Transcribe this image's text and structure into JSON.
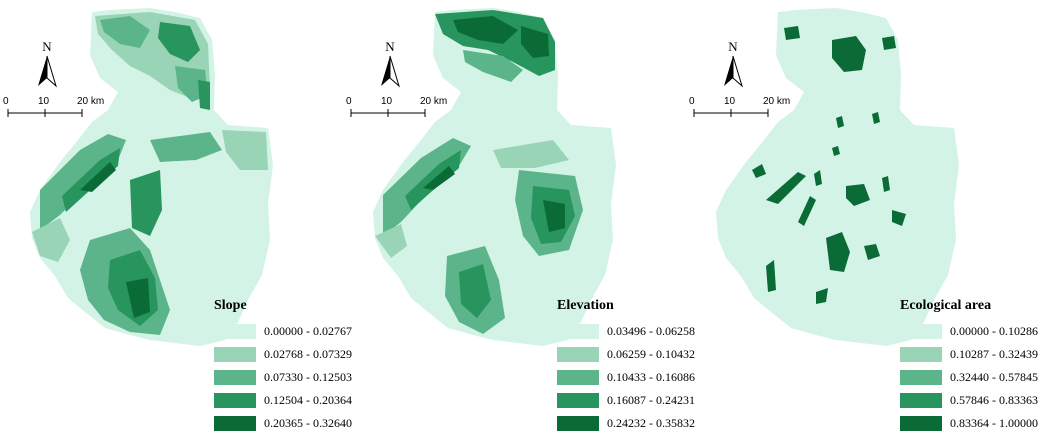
{
  "colors": {
    "class1": "#d3f3e6",
    "class2": "#98d4b5",
    "class3": "#5cb58a",
    "class4": "#27955d",
    "class5": "#0a6b36"
  },
  "north_arrow": {
    "label": "N",
    "icon": "north-arrow-icon"
  },
  "scale_bar": {
    "ticks": [
      "0",
      "10",
      "20 km"
    ]
  },
  "panels": [
    {
      "name": "slope",
      "legend": {
        "title": "Slope",
        "items": [
          "0.00000 - 0.02767",
          "0.02768 - 0.07329",
          "0.07330 - 0.12503",
          "0.12504 - 0.20364",
          "0.20365 - 0.32640"
        ]
      }
    },
    {
      "name": "elevation",
      "legend": {
        "title": "Elevation",
        "items": [
          "0.03496 - 0.06258",
          "0.06259 - 0.10432",
          "0.10433 - 0.16086",
          "0.16087 - 0.24231",
          "0.24232 - 0.35832"
        ]
      }
    },
    {
      "name": "ecological-area",
      "legend": {
        "title": "Ecological area",
        "items": [
          "0.00000 - 0.10286",
          "0.10287 - 0.32439",
          "0.32440 - 0.57845",
          "0.57846 - 0.83363",
          "0.83364 - 1.00000"
        ]
      }
    }
  ]
}
